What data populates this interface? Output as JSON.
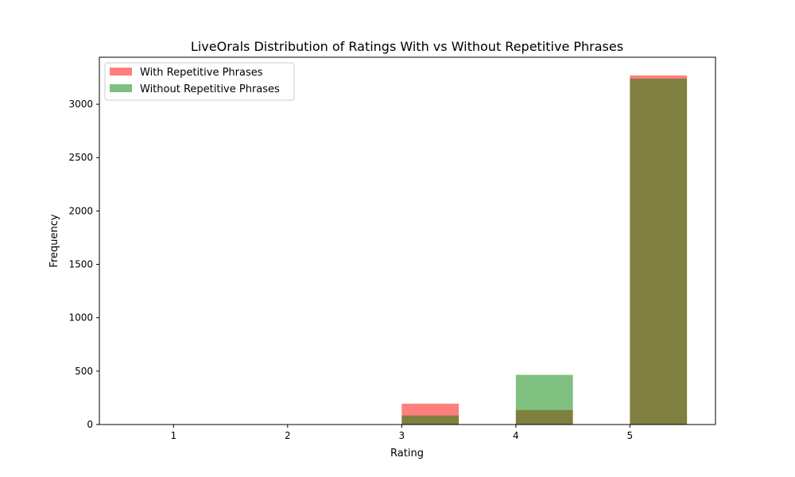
{
  "chart_data": {
    "type": "bar",
    "title": "LiveOrals Distribution of Ratings With vs Without Repetitive Phrases",
    "xlabel": "Rating",
    "ylabel": "Frequency",
    "categories": [
      "1",
      "2",
      "3",
      "4",
      "5"
    ],
    "x_values": [
      1,
      2,
      3,
      4,
      5
    ],
    "xlim": [
      0.35,
      5.75
    ],
    "ylim": [
      0,
      3440
    ],
    "yticks": [
      0,
      500,
      1000,
      1500,
      2000,
      2500,
      3000
    ],
    "grid": false,
    "legend_position": "top-left",
    "series": [
      {
        "name": "With Repetitive Phrases",
        "color": "#ff0000",
        "opacity": 0.5,
        "values": [
          0,
          0,
          195,
          135,
          3270
        ]
      },
      {
        "name": "Without Repetitive Phrases",
        "color": "#008000",
        "opacity": 0.5,
        "values": [
          0,
          0,
          85,
          465,
          3240
        ]
      }
    ]
  }
}
